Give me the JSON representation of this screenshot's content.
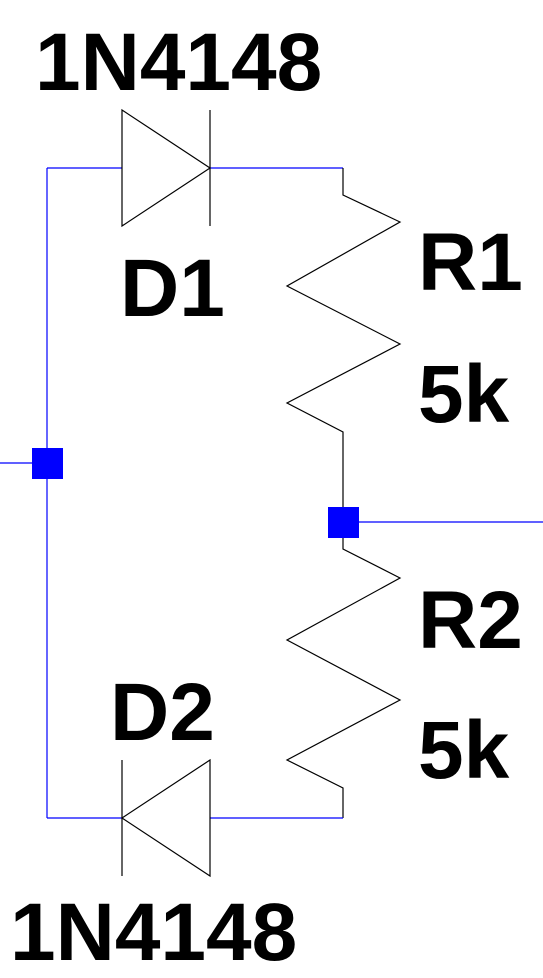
{
  "components": {
    "d1": {
      "ref": "D1",
      "model": "1N4148"
    },
    "d2": {
      "ref": "D2",
      "model": "1N4148"
    },
    "r1": {
      "ref": "R1",
      "value": "5k"
    },
    "r2": {
      "ref": "R2",
      "value": "5k"
    }
  },
  "colors": {
    "wire": "#0000ff",
    "symbol": "#000000",
    "junction": "#0000ff",
    "background": "#ffffff"
  }
}
